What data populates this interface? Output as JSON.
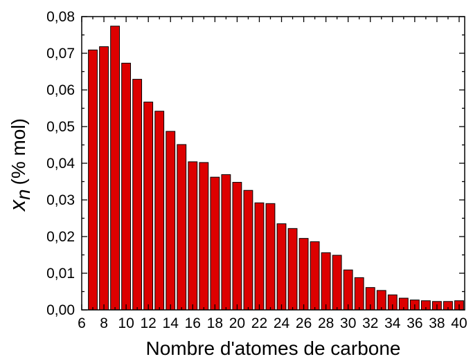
{
  "chart_data": {
    "type": "bar",
    "title": "",
    "xlabel": "Nombre d'atomes de carbone",
    "ylabel": {
      "variable": "x",
      "subscript": "n",
      "unit": "(% mol)"
    },
    "x": [
      7,
      8,
      9,
      10,
      11,
      12,
      13,
      14,
      15,
      16,
      17,
      18,
      19,
      20,
      21,
      22,
      23,
      24,
      25,
      26,
      27,
      28,
      29,
      30,
      31,
      32,
      33,
      34,
      35,
      36,
      37,
      38,
      39,
      40
    ],
    "values": [
      0.0709,
      0.0718,
      0.0774,
      0.0673,
      0.0629,
      0.0567,
      0.0542,
      0.0487,
      0.0451,
      0.0404,
      0.0402,
      0.0362,
      0.0369,
      0.0348,
      0.0326,
      0.0292,
      0.029,
      0.0235,
      0.0222,
      0.0195,
      0.0186,
      0.0156,
      0.0149,
      0.0109,
      0.0088,
      0.0061,
      0.0053,
      0.0041,
      0.0032,
      0.0027,
      0.0025,
      0.0023,
      0.0023,
      0.0025
    ],
    "xlim": [
      6,
      40.5
    ],
    "ylim": [
      0,
      0.08
    ],
    "xticks": [
      "6",
      "8",
      "10",
      "12",
      "14",
      "16",
      "18",
      "20",
      "22",
      "24",
      "26",
      "28",
      "30",
      "32",
      "34",
      "36",
      "38",
      "40"
    ],
    "yticks": [
      "0,00",
      "0,01",
      "0,02",
      "0,03",
      "0,04",
      "0,05",
      "0,06",
      "0,07",
      "0,08"
    ],
    "bar_color": "#dd0000",
    "bar_edge_color": "#000000",
    "grid": false,
    "legend": "none"
  }
}
